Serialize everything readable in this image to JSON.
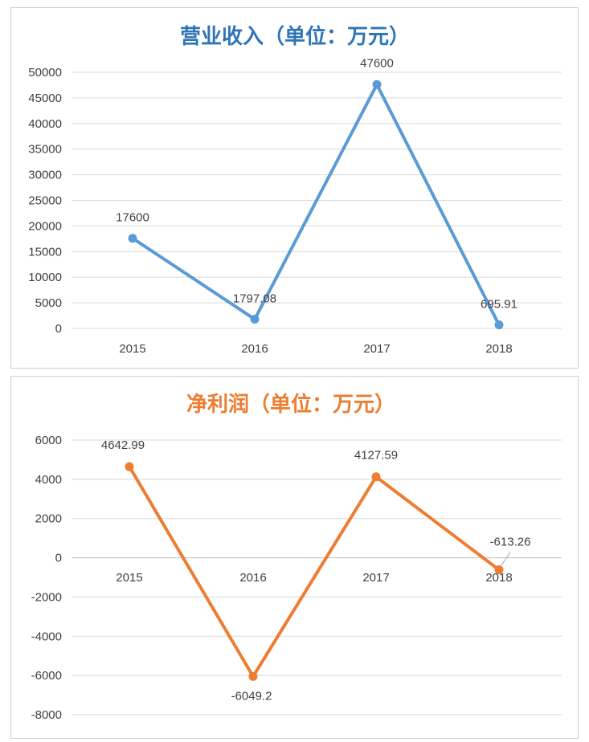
{
  "chart_data": [
    {
      "type": "line",
      "title": "营业收入（单位：万元）",
      "categories": [
        "2015",
        "2016",
        "2017",
        "2018"
      ],
      "series": [
        {
          "values": [
            17600,
            1797.08,
            47600,
            695.91
          ]
        }
      ],
      "data_labels": [
        "17600",
        "1797.08",
        "47600",
        "695.91"
      ],
      "yticks": [
        "0",
        "5000",
        "10000",
        "15000",
        "20000",
        "25000",
        "30000",
        "35000",
        "40000",
        "45000",
        "50000"
      ],
      "ylim": [
        0,
        50000
      ],
      "grid": true,
      "color": "#5b9bd5",
      "title_color": "#2e75b6"
    },
    {
      "type": "line",
      "title": "净利润（单位：万元）",
      "categories": [
        "2015",
        "2016",
        "2017",
        "2018"
      ],
      "series": [
        {
          "values": [
            4642.99,
            -6049.2,
            4127.59,
            -613.26
          ]
        }
      ],
      "data_labels": [
        "4642.99",
        "-6049.2",
        "4127.59",
        "-613.26"
      ],
      "yticks": [
        "-8000",
        "-6000",
        "-4000",
        "-2000",
        "0",
        "2000",
        "4000",
        "6000"
      ],
      "ylim": [
        -8000,
        6000
      ],
      "grid": true,
      "color": "#ed7d31",
      "title_color": "#ed7d31"
    }
  ]
}
